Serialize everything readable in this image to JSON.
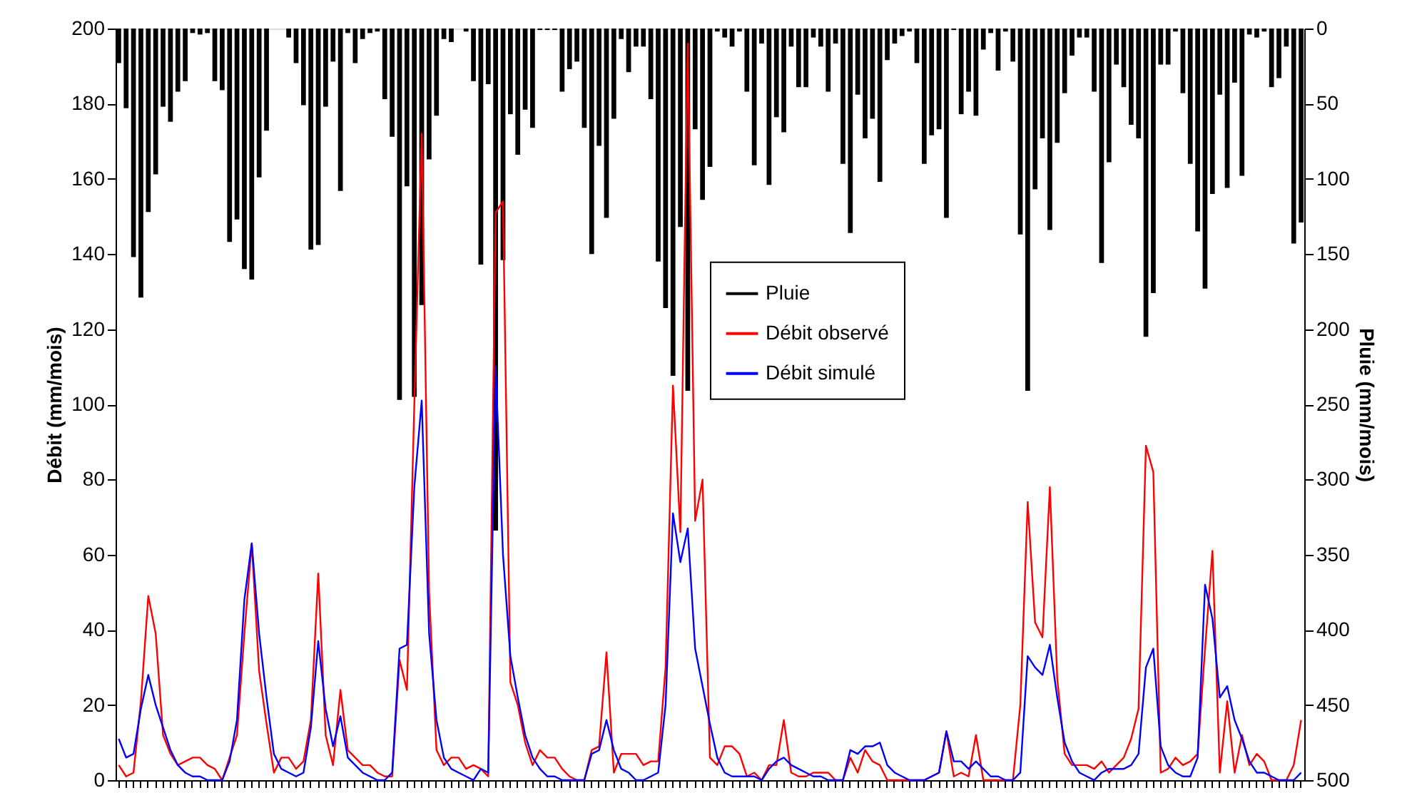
{
  "chart_data": {
    "type": "bar",
    "ylabel": "Débit (mm/mois)",
    "y2label": "Pluie (mm/mois)",
    "categories": [
      null,
      null,
      null,
      null,
      null,
      null,
      null,
      null,
      null,
      null,
      null,
      null,
      null,
      null,
      null,
      null,
      null,
      null,
      null,
      null,
      null,
      null,
      null,
      null,
      null,
      null,
      null,
      null,
      null,
      null,
      null,
      null,
      null,
      null,
      null,
      null,
      null,
      null,
      null,
      null,
      null,
      null,
      null,
      null,
      null,
      null,
      null,
      null,
      null,
      null,
      null,
      null,
      null,
      null,
      null,
      null,
      null,
      null,
      null,
      null,
      null,
      null,
      null,
      null,
      null,
      null,
      null,
      null,
      null,
      null,
      null,
      null,
      null,
      null,
      null,
      null,
      null,
      null,
      null,
      null,
      null,
      null,
      null,
      null,
      null,
      null,
      null,
      null,
      null,
      null,
      null,
      null,
      null,
      null,
      null,
      null,
      null,
      null,
      null,
      null,
      null,
      null,
      null,
      null,
      null,
      null,
      null,
      null,
      null,
      null,
      null,
      null,
      null,
      null,
      null,
      null,
      null,
      null,
      null,
      null,
      null,
      null,
      null,
      null,
      null,
      null,
      null,
      null,
      null,
      null,
      null,
      null,
      null,
      null,
      null,
      null,
      null,
      null,
      null,
      null,
      null,
      null,
      null,
      null,
      null,
      null,
      null,
      null,
      null,
      null,
      null,
      null,
      null,
      null,
      null,
      null,
      null,
      null,
      null,
      null,
      null
    ],
    "series": [
      {
        "name": "Pluie",
        "axis": "y2",
        "color": "#000000",
        "values": [
          23,
          53,
          152,
          179,
          122,
          97,
          52,
          62,
          42,
          35,
          3,
          4,
          3,
          35,
          41,
          142,
          127,
          160,
          167,
          99,
          68,
          0,
          0,
          6,
          23,
          51,
          147,
          144,
          52,
          22,
          108,
          3,
          23,
          7,
          3,
          2,
          47,
          72,
          247,
          105,
          245,
          184,
          87,
          58,
          7,
          9,
          0,
          2,
          35,
          157,
          37,
          334,
          154,
          57,
          84,
          54,
          66,
          1,
          1,
          1,
          42,
          27,
          22,
          66,
          150,
          78,
          126,
          60,
          7,
          29,
          12,
          12,
          47,
          155,
          186,
          231,
          132,
          241,
          67,
          114,
          92,
          2,
          6,
          12,
          2,
          42,
          91,
          10,
          104,
          59,
          69,
          12,
          39,
          39,
          6,
          12,
          42,
          10,
          90,
          136,
          44,
          73,
          60,
          102,
          21,
          10,
          5,
          2,
          23,
          90,
          71,
          67,
          126,
          1,
          57,
          42,
          58,
          14,
          3,
          28,
          2,
          22,
          137,
          241,
          107,
          73,
          134,
          76,
          43,
          18,
          6,
          6,
          42,
          156,
          89,
          24,
          39,
          64,
          73,
          205,
          176,
          24,
          24,
          2,
          43,
          90,
          135,
          173,
          110,
          44,
          106,
          36,
          98,
          4,
          6,
          2,
          39,
          33,
          12,
          143,
          129
        ]
      },
      {
        "name": "Débit observé",
        "type": "line",
        "color": "#ff0000",
        "values": [
          4,
          1,
          2,
          21,
          49,
          39,
          12,
          7,
          4,
          5,
          6,
          6,
          4,
          3,
          0,
          6,
          12,
          39,
          63,
          29,
          15,
          2,
          6,
          6,
          3,
          5,
          16,
          55,
          12,
          4,
          24,
          8,
          6,
          4,
          4,
          2,
          1,
          1,
          32,
          24,
          100,
          172,
          50,
          8,
          4,
          6,
          6,
          3,
          4,
          3,
          1,
          151,
          154,
          26,
          20,
          10,
          4,
          8,
          6,
          6,
          3,
          1,
          0,
          0,
          8,
          9,
          34,
          2,
          7,
          7,
          7,
          4,
          5,
          5,
          30,
          105,
          66,
          196,
          69,
          80,
          6,
          4,
          9,
          9,
          7,
          1,
          2,
          0,
          4,
          4,
          16,
          2,
          1,
          1,
          2,
          2,
          2,
          0,
          0,
          6,
          2,
          8,
          5,
          4,
          0,
          0,
          0,
          0,
          0,
          0,
          1,
          2,
          13,
          1,
          2,
          1,
          12,
          0,
          0,
          0,
          0,
          0,
          20,
          74,
          42,
          38,
          78,
          27,
          7,
          4,
          4,
          4,
          3,
          5,
          2,
          4,
          6,
          11,
          19,
          89,
          82,
          2,
          3,
          6,
          4,
          5,
          7,
          35,
          61,
          2,
          21,
          2,
          12,
          4,
          7,
          5,
          0,
          0,
          0,
          4,
          16
        ]
      },
      {
        "name": "Débit simulé",
        "type": "line",
        "color": "#0000ff",
        "values": [
          11,
          6,
          7,
          19,
          28,
          20,
          14,
          8,
          4,
          2,
          1,
          1,
          0,
          0,
          0,
          5,
          16,
          48,
          63,
          39,
          22,
          7,
          3,
          2,
          1,
          2,
          14,
          37,
          19,
          9,
          17,
          6,
          4,
          2,
          1,
          0,
          0,
          2,
          35,
          36,
          78,
          101,
          39,
          16,
          6,
          3,
          2,
          1,
          0,
          3,
          2,
          110,
          60,
          33,
          22,
          12,
          6,
          3,
          1,
          1,
          0,
          0,
          0,
          0,
          7,
          8,
          16,
          8,
          3,
          2,
          0,
          0,
          1,
          2,
          20,
          71,
          58,
          67,
          35,
          25,
          15,
          6,
          2,
          1,
          1,
          1,
          1,
          0,
          3,
          5,
          6,
          4,
          3,
          2,
          1,
          1,
          0,
          0,
          0,
          8,
          7,
          9,
          9,
          10,
          4,
          2,
          1,
          0,
          0,
          0,
          1,
          2,
          13,
          5,
          5,
          3,
          5,
          3,
          1,
          1,
          0,
          0,
          2,
          33,
          30,
          28,
          36,
          22,
          10,
          5,
          2,
          1,
          0,
          2,
          3,
          3,
          3,
          4,
          7,
          30,
          35,
          9,
          4,
          2,
          1,
          1,
          6,
          52,
          43,
          22,
          25,
          16,
          11,
          5,
          2,
          2,
          1,
          0,
          0,
          0,
          2
        ]
      }
    ],
    "ylim": [
      0,
      200
    ],
    "yticks": [
      0,
      20,
      40,
      60,
      80,
      100,
      120,
      140,
      160,
      180,
      200
    ],
    "y2lim": [
      500,
      0
    ],
    "y2ticks": [
      0,
      50,
      100,
      150,
      200,
      250,
      300,
      350,
      400,
      450,
      500
    ],
    "tick_labels": "y",
    "grid": false,
    "legend": "top"
  }
}
